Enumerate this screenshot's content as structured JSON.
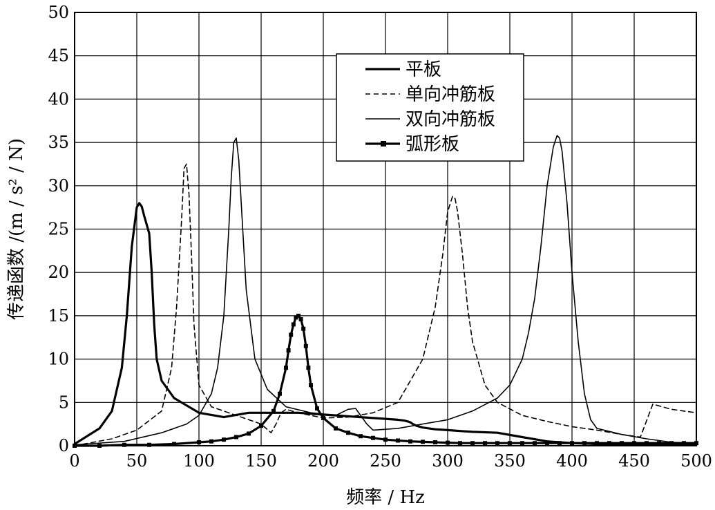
{
  "chart_data": {
    "type": "line",
    "title": "",
    "xlabel": "频率 / Hz",
    "ylabel": "传递函数 /(m / s² / N)",
    "xlim": [
      0,
      500
    ],
    "ylim": [
      0,
      50
    ],
    "xticks": [
      "0",
      "50",
      "100",
      "150",
      "200",
      "250",
      "300",
      "350",
      "400",
      "450",
      "500"
    ],
    "yticks": [
      "0",
      "5",
      "10",
      "15",
      "20",
      "25",
      "30",
      "35",
      "40",
      "45",
      "50"
    ],
    "grid": true,
    "legend_position": "top-center",
    "series": [
      {
        "name": "平板",
        "style": "thick-solid",
        "color": "#000000",
        "x": [
          0,
          20,
          30,
          38,
          42,
          46,
          50,
          52,
          54,
          56,
          58,
          60,
          62,
          64,
          66,
          70,
          80,
          100,
          120,
          140,
          180,
          200,
          220,
          240,
          250,
          260,
          265,
          268,
          270,
          272,
          275,
          280,
          290,
          300,
          310,
          320,
          340,
          360,
          380,
          400,
          420,
          440,
          460,
          480,
          500
        ],
        "y": [
          0.2,
          2.0,
          4.0,
          9.0,
          15.0,
          23.0,
          27.5,
          28.0,
          27.6,
          26.5,
          25.5,
          24.5,
          20.0,
          14.0,
          10.0,
          7.5,
          5.5,
          3.8,
          3.3,
          3.8,
          3.8,
          3.6,
          3.4,
          3.2,
          3.1,
          3.0,
          2.9,
          2.8,
          2.7,
          2.5,
          2.3,
          2.1,
          1.9,
          1.8,
          1.7,
          1.6,
          1.5,
          1.0,
          0.5,
          0.3,
          0.2,
          0.2,
          0.2,
          0.2,
          0.2
        ]
      },
      {
        "name": "单向冲筋板",
        "style": "dashed",
        "color": "#000000",
        "x": [
          0,
          30,
          50,
          70,
          78,
          82,
          86,
          88,
          90,
          92,
          94,
          96,
          100,
          110,
          130,
          150,
          158,
          162,
          166,
          170,
          180,
          200,
          220,
          240,
          260,
          280,
          290,
          296,
          300,
          304,
          306,
          308,
          312,
          316,
          320,
          330,
          340,
          360,
          380,
          400,
          420,
          440,
          455,
          465,
          470,
          480,
          500
        ],
        "y": [
          0,
          0.8,
          1.8,
          4.0,
          9.0,
          16.0,
          26.0,
          32.0,
          32.5,
          29.0,
          22.0,
          14.0,
          7.0,
          4.5,
          3.5,
          2.5,
          1.5,
          2.5,
          3.8,
          4.2,
          3.8,
          3.2,
          3.3,
          3.8,
          5.0,
          10.0,
          16.0,
          22.0,
          27.0,
          28.8,
          28.5,
          27.0,
          22.0,
          16.0,
          12.0,
          7.0,
          5.0,
          3.5,
          2.8,
          2.2,
          1.8,
          1.3,
          1.0,
          4.8,
          4.6,
          4.2,
          3.8
        ]
      },
      {
        "name": "双向冲筋板",
        "style": "thin-solid",
        "color": "#000000",
        "x": [
          0,
          40,
          70,
          90,
          100,
          110,
          115,
          120,
          124,
          126,
          128,
          130,
          132,
          134,
          138,
          145,
          155,
          170,
          190,
          210,
          220,
          226,
          230,
          235,
          240,
          260,
          280,
          300,
          320,
          340,
          350,
          360,
          365,
          370,
          375,
          380,
          385,
          388,
          390,
          392,
          396,
          400,
          405,
          410,
          415,
          420,
          440,
          460,
          480,
          500
        ],
        "y": [
          0.1,
          0.5,
          1.5,
          2.5,
          3.5,
          6.0,
          9.0,
          15.0,
          25.0,
          31.0,
          35.0,
          35.5,
          33.0,
          28.0,
          18.0,
          10.0,
          6.5,
          4.5,
          3.8,
          3.5,
          4.2,
          4.3,
          3.5,
          2.5,
          1.8,
          2.0,
          2.5,
          3.0,
          4.0,
          5.5,
          7.0,
          10.0,
          13.0,
          17.0,
          23.0,
          30.0,
          34.5,
          35.8,
          35.5,
          34.0,
          28.0,
          20.0,
          12.0,
          6.0,
          3.0,
          2.0,
          1.3,
          0.8,
          0.4,
          0.3
        ]
      },
      {
        "name": "弧形板",
        "style": "thick-solid-square-markers",
        "color": "#000000",
        "x": [
          0,
          20,
          40,
          60,
          80,
          100,
          110,
          120,
          130,
          140,
          150,
          160,
          165,
          170,
          172,
          174,
          176,
          178,
          180,
          182,
          184,
          186,
          188,
          190,
          195,
          200,
          210,
          220,
          230,
          240,
          250,
          260,
          270,
          280,
          290,
          300,
          310,
          320,
          330,
          340,
          350,
          360,
          370,
          380,
          390,
          400,
          410,
          420,
          430,
          440,
          450,
          460,
          470,
          480,
          490,
          500
        ],
        "y": [
          0,
          0,
          0.1,
          0.1,
          0.2,
          0.4,
          0.5,
          0.7,
          1.0,
          1.4,
          2.3,
          4.0,
          6.0,
          9.0,
          11.0,
          12.8,
          14.0,
          14.8,
          15.0,
          14.6,
          13.5,
          11.5,
          9.0,
          7.0,
          4.3,
          3.2,
          2.0,
          1.5,
          1.1,
          0.9,
          0.7,
          0.6,
          0.5,
          0.45,
          0.4,
          0.35,
          0.3,
          0.3,
          0.3,
          0.3,
          0.3,
          0.3,
          0.3,
          0.3,
          0.3,
          0.3,
          0.3,
          0.3,
          0.3,
          0.3,
          0.3,
          0.3,
          0.3,
          0.3,
          0.3,
          0.3
        ]
      }
    ]
  }
}
